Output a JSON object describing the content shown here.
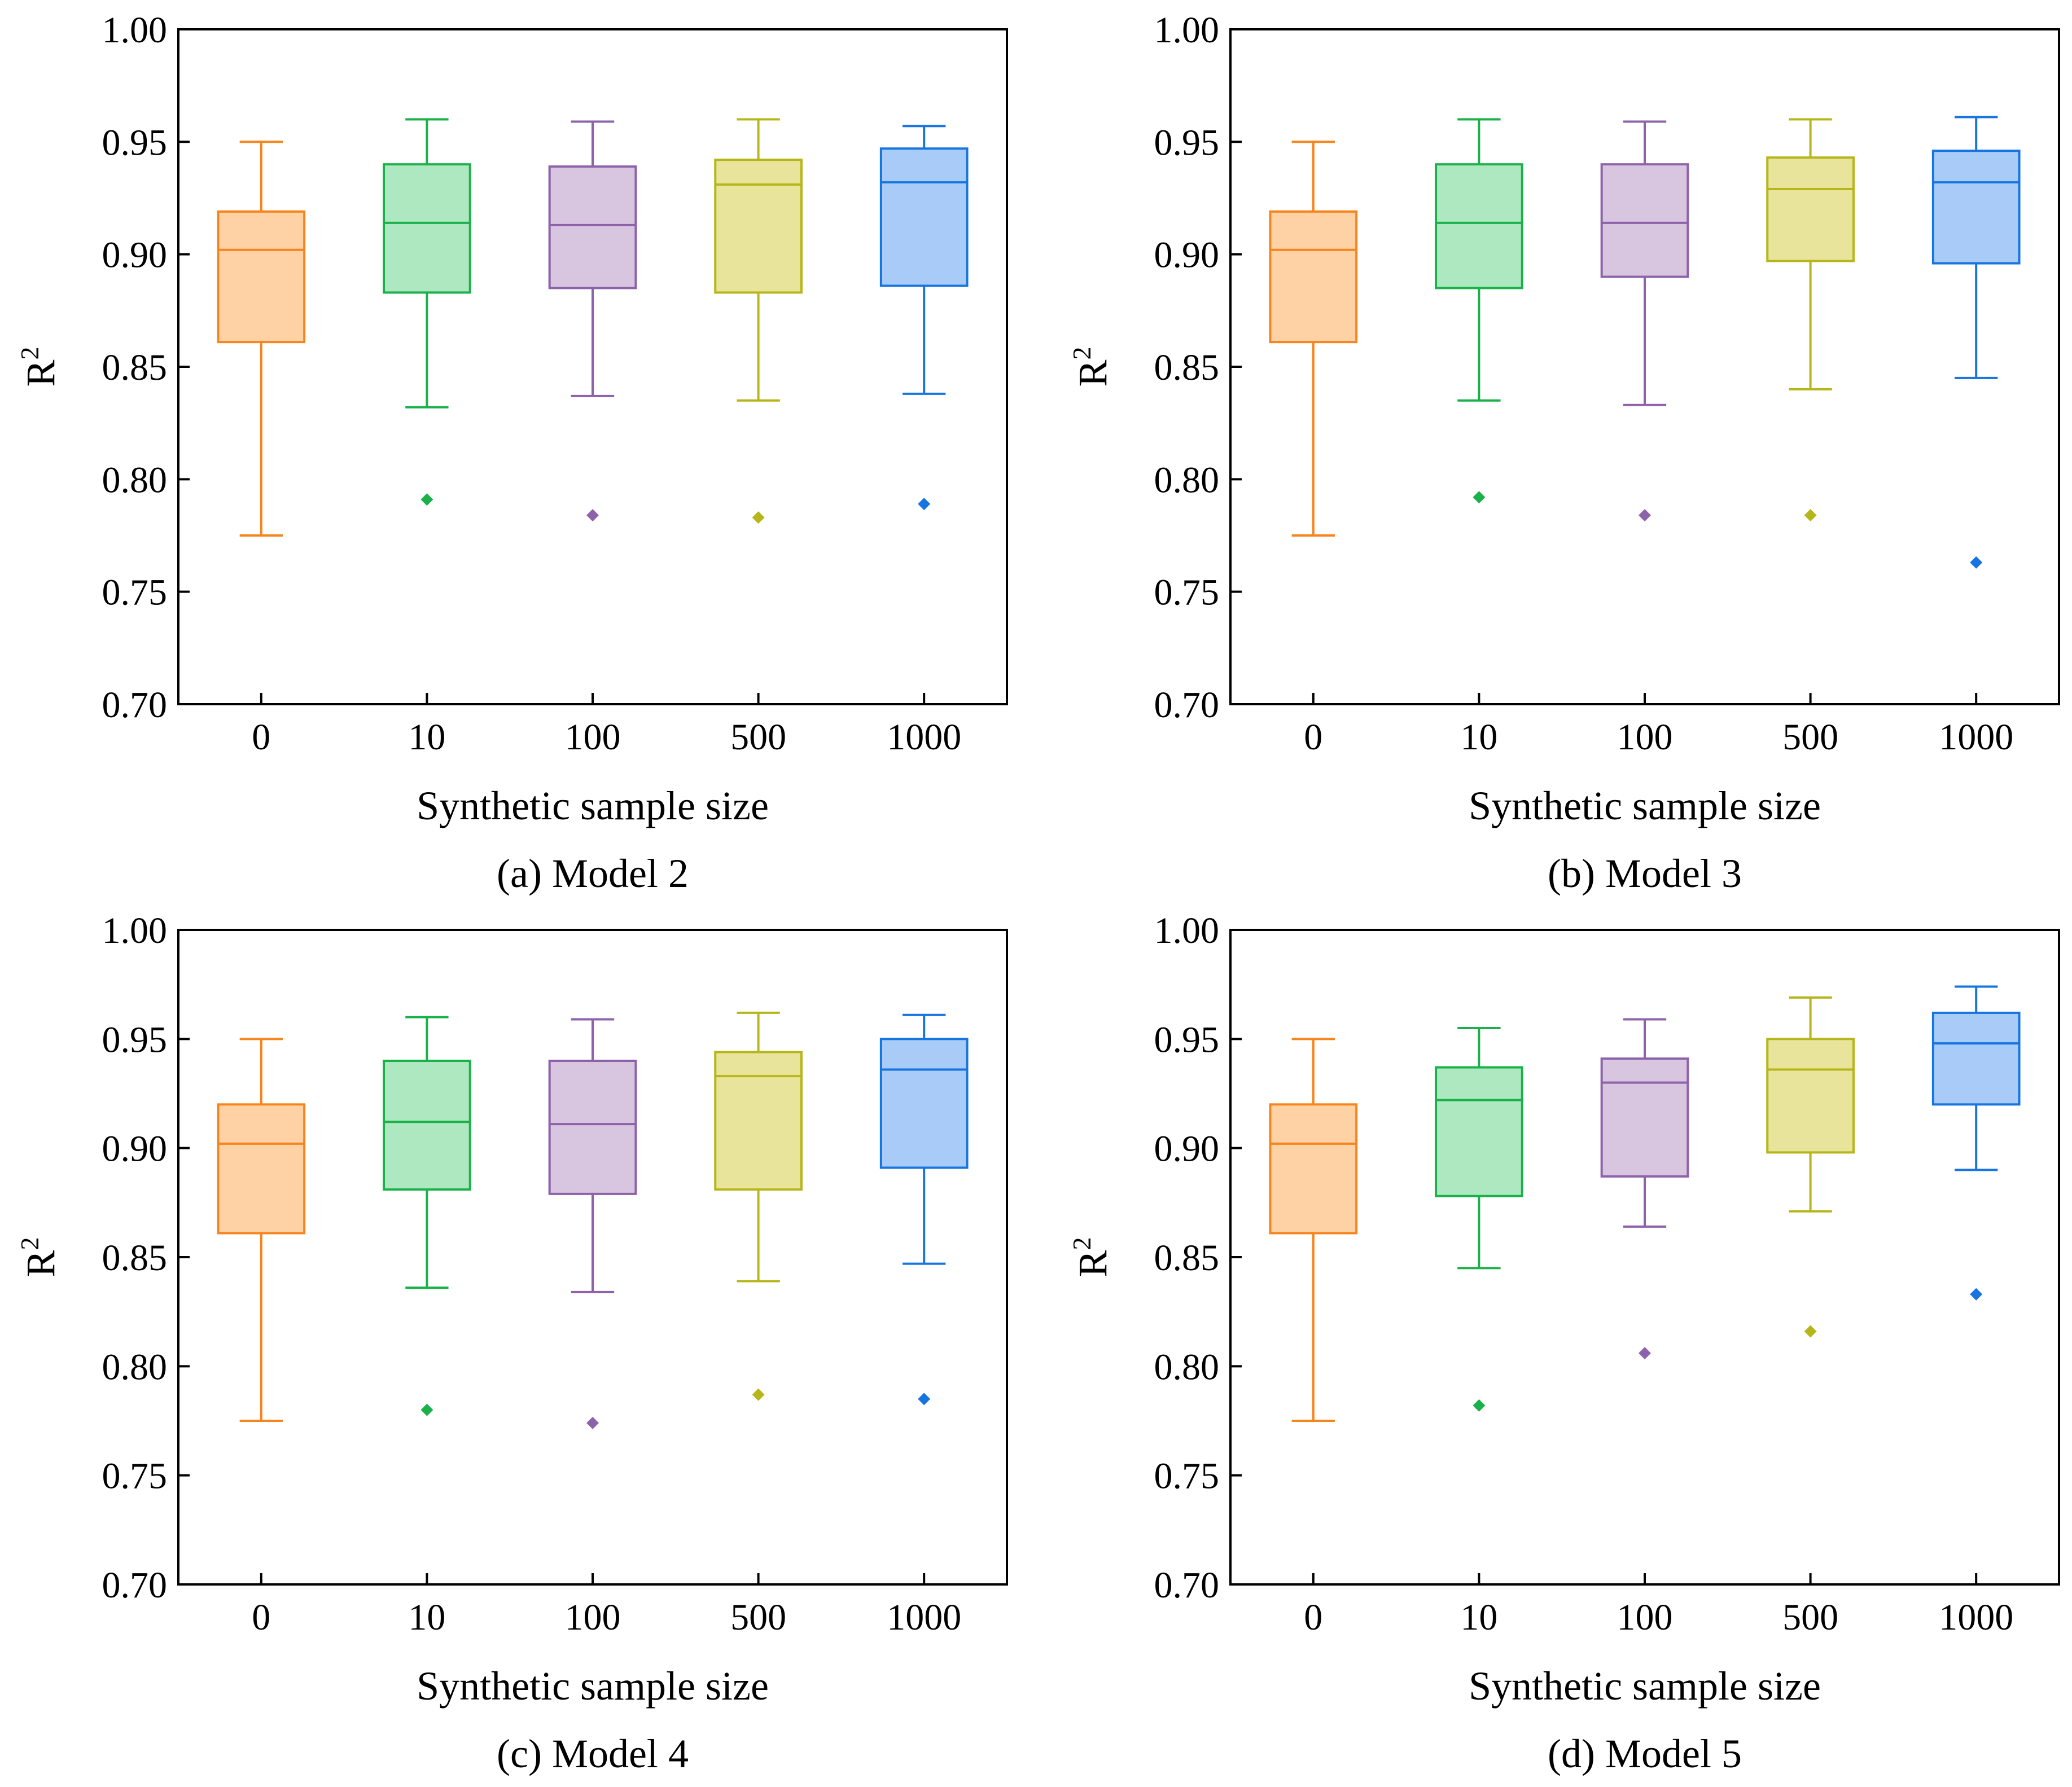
{
  "colors": [
    "#F7851E",
    "#1BB14A",
    "#8E62AA",
    "#B6B61A",
    "#1675E0"
  ],
  "fills": [
    "#FFD2A6",
    "#AEE8C0",
    "#D8C6E0",
    "#E8E49C",
    "#A8CCF7"
  ],
  "chart_data": [
    {
      "type": "box",
      "caption": "(a) Model 2",
      "xlabel": "Synthetic sample size",
      "ylabel": "R",
      "ylabel_sup": "2",
      "ylim": [
        0.7,
        1.0
      ],
      "yticks": [
        "0.70",
        "0.75",
        "0.80",
        "0.85",
        "0.90",
        "0.95",
        "1.00"
      ],
      "categories": [
        "0",
        "10",
        "100",
        "500",
        "1000"
      ],
      "boxes": [
        {
          "whisker_low": 0.775,
          "q1": 0.861,
          "median": 0.902,
          "q3": 0.919,
          "whisker_high": 0.95,
          "outliers": []
        },
        {
          "whisker_low": 0.832,
          "q1": 0.883,
          "median": 0.914,
          "q3": 0.94,
          "whisker_high": 0.96,
          "outliers": [
            0.791
          ]
        },
        {
          "whisker_low": 0.837,
          "q1": 0.885,
          "median": 0.913,
          "q3": 0.939,
          "whisker_high": 0.959,
          "outliers": [
            0.784
          ]
        },
        {
          "whisker_low": 0.835,
          "q1": 0.883,
          "median": 0.931,
          "q3": 0.942,
          "whisker_high": 0.96,
          "outliers": [
            0.783
          ]
        },
        {
          "whisker_low": 0.838,
          "q1": 0.886,
          "median": 0.932,
          "q3": 0.947,
          "whisker_high": 0.957,
          "outliers": [
            0.789
          ]
        }
      ]
    },
    {
      "type": "box",
      "caption": "(b) Model 3",
      "xlabel": "Synthetic sample size",
      "ylabel": "R",
      "ylabel_sup": "2",
      "ylim": [
        0.7,
        1.0
      ],
      "yticks": [
        "0.70",
        "0.75",
        "0.80",
        "0.85",
        "0.90",
        "0.95",
        "1.00"
      ],
      "categories": [
        "0",
        "10",
        "100",
        "500",
        "1000"
      ],
      "boxes": [
        {
          "whisker_low": 0.775,
          "q1": 0.861,
          "median": 0.902,
          "q3": 0.919,
          "whisker_high": 0.95,
          "outliers": []
        },
        {
          "whisker_low": 0.835,
          "q1": 0.885,
          "median": 0.914,
          "q3": 0.94,
          "whisker_high": 0.96,
          "outliers": [
            0.792
          ]
        },
        {
          "whisker_low": 0.833,
          "q1": 0.89,
          "median": 0.914,
          "q3": 0.94,
          "whisker_high": 0.959,
          "outliers": [
            0.784
          ]
        },
        {
          "whisker_low": 0.84,
          "q1": 0.897,
          "median": 0.929,
          "q3": 0.943,
          "whisker_high": 0.96,
          "outliers": [
            0.784
          ]
        },
        {
          "whisker_low": 0.845,
          "q1": 0.896,
          "median": 0.932,
          "q3": 0.946,
          "whisker_high": 0.961,
          "outliers": [
            0.763
          ]
        }
      ]
    },
    {
      "type": "box",
      "caption": "(c) Model 4",
      "xlabel": "Synthetic sample size",
      "ylabel": "R",
      "ylabel_sup": "2",
      "ylim": [
        0.7,
        1.0
      ],
      "yticks": [
        "0.70",
        "0.75",
        "0.80",
        "0.85",
        "0.90",
        "0.95",
        "1.00"
      ],
      "categories": [
        "0",
        "10",
        "100",
        "500",
        "1000"
      ],
      "boxes": [
        {
          "whisker_low": 0.775,
          "q1": 0.861,
          "median": 0.902,
          "q3": 0.92,
          "whisker_high": 0.95,
          "outliers": []
        },
        {
          "whisker_low": 0.836,
          "q1": 0.881,
          "median": 0.912,
          "q3": 0.94,
          "whisker_high": 0.96,
          "outliers": [
            0.78
          ]
        },
        {
          "whisker_low": 0.834,
          "q1": 0.879,
          "median": 0.911,
          "q3": 0.94,
          "whisker_high": 0.959,
          "outliers": [
            0.774
          ]
        },
        {
          "whisker_low": 0.839,
          "q1": 0.881,
          "median": 0.933,
          "q3": 0.944,
          "whisker_high": 0.962,
          "outliers": [
            0.787
          ]
        },
        {
          "whisker_low": 0.847,
          "q1": 0.891,
          "median": 0.936,
          "q3": 0.95,
          "whisker_high": 0.961,
          "outliers": [
            0.785
          ]
        }
      ]
    },
    {
      "type": "box",
      "caption": "(d) Model 5",
      "xlabel": "Synthetic sample size",
      "ylabel": "R",
      "ylabel_sup": "2",
      "ylim": [
        0.7,
        1.0
      ],
      "yticks": [
        "0.70",
        "0.75",
        "0.80",
        "0.85",
        "0.90",
        "0.95",
        "1.00"
      ],
      "categories": [
        "0",
        "10",
        "100",
        "500",
        "1000"
      ],
      "boxes": [
        {
          "whisker_low": 0.775,
          "q1": 0.861,
          "median": 0.902,
          "q3": 0.92,
          "whisker_high": 0.95,
          "outliers": []
        },
        {
          "whisker_low": 0.845,
          "q1": 0.878,
          "median": 0.922,
          "q3": 0.937,
          "whisker_high": 0.955,
          "outliers": [
            0.782
          ]
        },
        {
          "whisker_low": 0.864,
          "q1": 0.887,
          "median": 0.93,
          "q3": 0.941,
          "whisker_high": 0.959,
          "outliers": [
            0.806
          ]
        },
        {
          "whisker_low": 0.871,
          "q1": 0.898,
          "median": 0.936,
          "q3": 0.95,
          "whisker_high": 0.969,
          "outliers": [
            0.816
          ]
        },
        {
          "whisker_low": 0.89,
          "q1": 0.92,
          "median": 0.948,
          "q3": 0.962,
          "whisker_high": 0.974,
          "outliers": [
            0.833
          ]
        }
      ]
    }
  ]
}
